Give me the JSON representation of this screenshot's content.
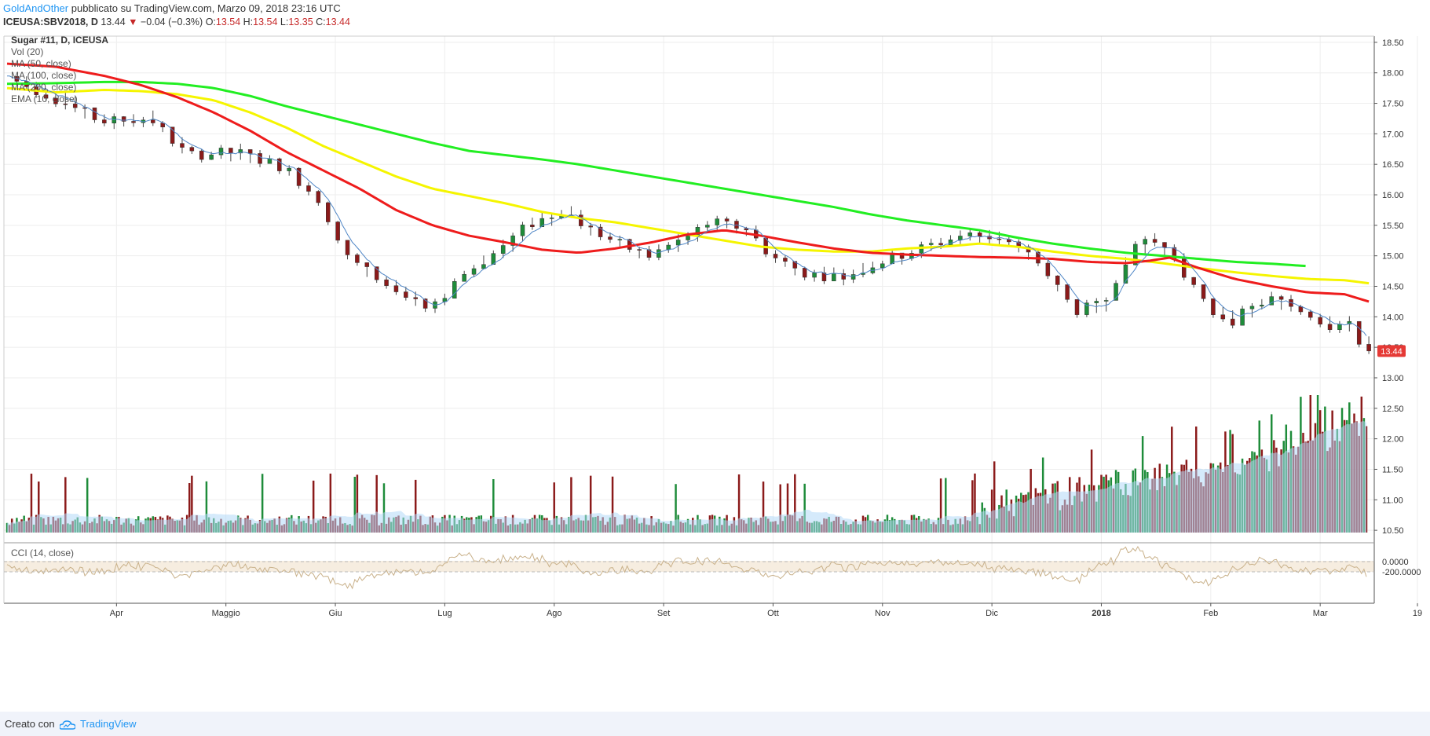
{
  "header": {
    "author": "GoldAndOther",
    "published": "pubblicato su TradingView.com, Marzo 09, 2018 23:16 UTC",
    "symbol": "ICEUSA:SBV2018, D",
    "last": "13.44",
    "change": "−0.04 (−0.3%)",
    "o_label": "O:",
    "o": "13.54",
    "h_label": "H:",
    "h": "13.54",
    "l_label": "L:",
    "l": "13.35",
    "c_label": "C:",
    "c": "13.44"
  },
  "legend": {
    "title": "Sugar #11, D, ICEUSA",
    "vol": "Vol (20)",
    "ma50": "MA (50, close)",
    "ma100": "MA (100, close)",
    "ma200": "MA (200, close)",
    "ema": "EMA (10, close)"
  },
  "cci_legend": "CCI (14, close)",
  "footer": {
    "created": "Creato con",
    "brand": "TradingView"
  },
  "colors": {
    "up": "#1e8c3a",
    "down": "#8b1a1a",
    "ma50": "#ee1c1c",
    "ma100": "#f5f500",
    "ma200": "#22ee22",
    "ema": "#4f86c6",
    "vol_ma": "#b3d9f7",
    "cci_band": "#f6ede0",
    "cci_line": "#c9b18a",
    "price_tag": "#e53935"
  },
  "chart_data": {
    "type": "candlestick",
    "title": "Sugar #11, D, ICEUSA",
    "price_axis": {
      "ticks": [
        "18.50",
        "18.00",
        "17.50",
        "17.00",
        "16.50",
        "16.00",
        "15.50",
        "15.00",
        "14.50",
        "14.00",
        "13.50",
        "13.00",
        "12.50",
        "12.00",
        "11.50",
        "11.00",
        "10.50"
      ],
      "range": [
        10.4,
        18.6
      ]
    },
    "cci_axis": {
      "ticks": [
        "0.0000",
        "-200.0000"
      ]
    },
    "time_axis": [
      "Apr",
      "Maggio",
      "Giu",
      "Lug",
      "Ago",
      "Set",
      "Ott",
      "Nov",
      "Dic",
      "2018",
      "Feb",
      "Mar",
      "19"
    ],
    "last_price": 13.44,
    "ma50": [
      [
        0,
        18.15
      ],
      [
        20,
        18.1
      ],
      [
        40,
        17.95
      ],
      [
        55,
        17.8
      ],
      [
        70,
        17.6
      ],
      [
        85,
        17.35
      ],
      [
        100,
        17.05
      ],
      [
        115,
        16.7
      ],
      [
        130,
        16.4
      ],
      [
        145,
        16.1
      ],
      [
        160,
        15.75
      ],
      [
        175,
        15.5
      ],
      [
        190,
        15.33
      ],
      [
        205,
        15.22
      ],
      [
        220,
        15.1
      ],
      [
        235,
        15.05
      ],
      [
        250,
        15.12
      ],
      [
        265,
        15.22
      ],
      [
        280,
        15.35
      ],
      [
        295,
        15.42
      ],
      [
        310,
        15.33
      ],
      [
        325,
        15.22
      ],
      [
        340,
        15.12
      ],
      [
        355,
        15.05
      ],
      [
        370,
        15.02
      ],
      [
        385,
        15.0
      ],
      [
        400,
        14.98
      ],
      [
        415,
        14.97
      ],
      [
        430,
        14.95
      ],
      [
        445,
        14.9
      ],
      [
        460,
        14.88
      ],
      [
        470,
        14.92
      ],
      [
        478,
        14.97
      ],
      [
        490,
        14.8
      ],
      [
        505,
        14.62
      ],
      [
        520,
        14.5
      ],
      [
        535,
        14.4
      ],
      [
        550,
        14.37
      ],
      [
        560,
        14.25
      ]
    ],
    "ma100": [
      [
        0,
        17.75
      ],
      [
        20,
        17.68
      ],
      [
        40,
        17.72
      ],
      [
        55,
        17.7
      ],
      [
        70,
        17.65
      ],
      [
        85,
        17.55
      ],
      [
        100,
        17.35
      ],
      [
        115,
        17.1
      ],
      [
        130,
        16.8
      ],
      [
        145,
        16.55
      ],
      [
        160,
        16.3
      ],
      [
        175,
        16.1
      ],
      [
        190,
        15.98
      ],
      [
        205,
        15.86
      ],
      [
        220,
        15.72
      ],
      [
        235,
        15.62
      ],
      [
        250,
        15.55
      ],
      [
        265,
        15.45
      ],
      [
        280,
        15.35
      ],
      [
        295,
        15.25
      ],
      [
        310,
        15.15
      ],
      [
        325,
        15.1
      ],
      [
        340,
        15.07
      ],
      [
        355,
        15.07
      ],
      [
        370,
        15.12
      ],
      [
        385,
        15.15
      ],
      [
        400,
        15.2
      ],
      [
        415,
        15.15
      ],
      [
        430,
        15.07
      ],
      [
        445,
        15.0
      ],
      [
        460,
        14.95
      ],
      [
        475,
        14.88
      ],
      [
        490,
        14.8
      ],
      [
        505,
        14.73
      ],
      [
        520,
        14.67
      ],
      [
        535,
        14.62
      ],
      [
        550,
        14.6
      ],
      [
        560,
        14.55
      ]
    ],
    "ma200": [
      [
        0,
        17.82
      ],
      [
        20,
        17.83
      ],
      [
        40,
        17.85
      ],
      [
        55,
        17.85
      ],
      [
        70,
        17.82
      ],
      [
        85,
        17.75
      ],
      [
        100,
        17.62
      ],
      [
        115,
        17.45
      ],
      [
        130,
        17.3
      ],
      [
        145,
        17.15
      ],
      [
        160,
        17.0
      ],
      [
        175,
        16.85
      ],
      [
        190,
        16.72
      ],
      [
        205,
        16.65
      ],
      [
        220,
        16.58
      ],
      [
        235,
        16.5
      ],
      [
        250,
        16.4
      ],
      [
        265,
        16.3
      ],
      [
        280,
        16.2
      ],
      [
        295,
        16.1
      ],
      [
        310,
        16.0
      ],
      [
        325,
        15.9
      ],
      [
        340,
        15.8
      ],
      [
        355,
        15.68
      ],
      [
        370,
        15.58
      ],
      [
        385,
        15.5
      ],
      [
        400,
        15.42
      ],
      [
        415,
        15.3
      ],
      [
        430,
        15.2
      ],
      [
        445,
        15.12
      ],
      [
        460,
        15.05
      ],
      [
        475,
        15.0
      ],
      [
        490,
        14.95
      ],
      [
        505,
        14.9
      ],
      [
        520,
        14.87
      ],
      [
        535,
        14.83
      ]
    ]
  }
}
